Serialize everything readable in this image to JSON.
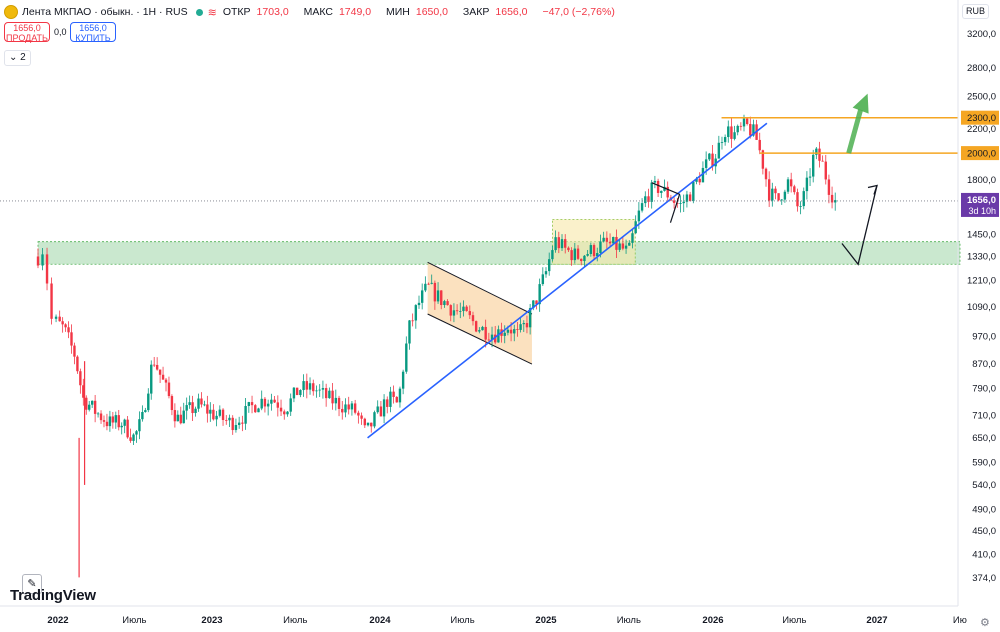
{
  "header": {
    "title": "Лента МКПАО · обыкн. · 1Н · RUS",
    "wave_icon": "≋",
    "ohlc": [
      {
        "label": "ОТКР",
        "value": "1703,0"
      },
      {
        "label": "МАКС",
        "value": "1749,0"
      },
      {
        "label": "МИН",
        "value": "1650,0"
      },
      {
        "label": "ЗАКР",
        "value": "1656,0"
      },
      {
        "label": "",
        "value": "−47,0 (−2,76%)"
      }
    ]
  },
  "trade": {
    "sell_price": "1656,0",
    "sell_label": "ПРОДАТЬ",
    "spread": "0,0",
    "buy_price": "1656,0",
    "buy_label": "КУПИТЬ"
  },
  "collapse_label": "⌄ 2",
  "currency": "RUB",
  "brand": "TradingView",
  "icons": {
    "pencil": "✎",
    "gear": "⚙"
  },
  "colors": {
    "up": "#089981",
    "down": "#f23645",
    "trendline": "#2962ff",
    "level": "#f5a623",
    "zone": "#9fd5a8",
    "channel": "#f7c98b"
  },
  "chart_data": {
    "type": "candlestick",
    "y_scale": "log",
    "ylim": [
      360,
      3600
    ],
    "xlim": [
      "2021-12-01",
      "2027-12-01"
    ],
    "y_ticks": [
      "3200,0",
      "2800,0",
      "2500,0",
      "2200,0",
      "1800,0",
      "1450,0",
      "1330,0",
      "1210,0",
      "1090,0",
      "970,0",
      "870,0",
      "790,0",
      "710,0",
      "650,0",
      "590,0",
      "540,0",
      "490,0",
      "450,0",
      "410,0",
      "374,0"
    ],
    "y_tick_values": [
      3200,
      2800,
      2500,
      2200,
      1800,
      1450,
      1330,
      1210,
      1090,
      970,
      870,
      790,
      710,
      650,
      590,
      540,
      490,
      450,
      410,
      374
    ],
    "x_ticks": [
      {
        "label": "2022",
        "date": "2022-01-01"
      },
      {
        "label": "Июль",
        "date": "2022-07-01"
      },
      {
        "label": "2023",
        "date": "2023-01-01"
      },
      {
        "label": "Июль",
        "date": "2023-07-01"
      },
      {
        "label": "2024",
        "date": "2024-01-01"
      },
      {
        "label": "Июль",
        "date": "2024-07-01"
      },
      {
        "label": "2025",
        "date": "2025-01-01"
      },
      {
        "label": "Июль",
        "date": "2025-07-01"
      },
      {
        "label": "2026",
        "date": "2026-01-01"
      },
      {
        "label": "Июль",
        "date": "2026-07-01"
      },
      {
        "label": "2027",
        "date": "2027-01-01"
      },
      {
        "label": "Ию",
        "date": "2027-07-01"
      }
    ],
    "series_path": [
      [
        "2021-12-01",
        1330
      ],
      [
        "2021-12-10",
        1380
      ],
      [
        "2021-12-20",
        1040
      ],
      [
        "2022-01-15",
        1000
      ],
      [
        "2022-02-10",
        900
      ],
      [
        "2022-03-01",
        760
      ],
      [
        "2022-04-01",
        720
      ],
      [
        "2022-05-01",
        690
      ],
      [
        "2022-06-01",
        690
      ],
      [
        "2022-07-01",
        650
      ],
      [
        "2022-07-20",
        700
      ],
      [
        "2022-08-15",
        890
      ],
      [
        "2022-09-10",
        800
      ],
      [
        "2022-10-10",
        700
      ],
      [
        "2022-11-01",
        720
      ],
      [
        "2022-12-01",
        740
      ],
      [
        "2023-01-10",
        710
      ],
      [
        "2023-02-10",
        690
      ],
      [
        "2023-03-10",
        710
      ],
      [
        "2023-04-10",
        750
      ],
      [
        "2023-05-10",
        760
      ],
      [
        "2023-06-10",
        730
      ],
      [
        "2023-07-10",
        790
      ],
      [
        "2023-08-10",
        790
      ],
      [
        "2023-09-10",
        760
      ],
      [
        "2023-10-10",
        740
      ],
      [
        "2023-11-10",
        720
      ],
      [
        "2023-12-01",
        660
      ],
      [
        "2023-12-20",
        700
      ],
      [
        "2024-01-20",
        760
      ],
      [
        "2024-02-10",
        740
      ],
      [
        "2024-03-05",
        1000
      ],
      [
        "2024-03-25",
        1100
      ],
      [
        "2024-04-15",
        1180
      ],
      [
        "2024-05-10",
        1130
      ],
      [
        "2024-06-10",
        1080
      ],
      [
        "2024-07-10",
        1050
      ],
      [
        "2024-08-10",
        1000
      ],
      [
        "2024-09-10",
        980
      ],
      [
        "2024-10-10",
        1010
      ],
      [
        "2024-11-01",
        970
      ],
      [
        "2024-11-20",
        1030
      ],
      [
        "2024-12-10",
        1120
      ],
      [
        "2025-01-01",
        1250
      ],
      [
        "2025-01-20",
        1420
      ],
      [
        "2025-02-10",
        1370
      ],
      [
        "2025-03-10",
        1330
      ],
      [
        "2025-04-10",
        1360
      ],
      [
        "2025-05-10",
        1400
      ],
      [
        "2025-06-10",
        1380
      ],
      [
        "2025-07-01",
        1350
      ],
      [
        "2025-07-20",
        1550
      ],
      [
        "2025-08-10",
        1700
      ],
      [
        "2025-09-01",
        1750
      ],
      [
        "2025-09-25",
        1700
      ],
      [
        "2025-10-20",
        1620
      ],
      [
        "2025-11-15",
        1720
      ],
      [
        "2025-12-15",
        1900
      ],
      [
        "2026-01-10",
        2000
      ],
      [
        "2026-01-25",
        2200
      ],
      [
        "2026-02-20",
        2150
      ],
      [
        "2026-03-15",
        2230
      ],
      [
        "2026-04-05",
        2150
      ],
      [
        "2026-04-20",
        1950
      ],
      [
        "2026-05-05",
        1720
      ],
      [
        "2026-05-25",
        1650
      ],
      [
        "2026-06-15",
        1800
      ],
      [
        "2026-07-10",
        1600
      ],
      [
        "2026-07-25",
        1700
      ],
      [
        "2026-08-15",
        2000
      ],
      [
        "2026-09-01",
        1920
      ],
      [
        "2026-09-15",
        1760
      ],
      [
        "2026-09-30",
        1656
      ]
    ],
    "spikes": [
      {
        "date": "2022-02-20",
        "low": 375,
        "high": 650
      },
      {
        "date": "2022-03-05",
        "low": 540,
        "high": 880
      }
    ],
    "last_price": {
      "value": 1656,
      "label": "1656,0",
      "countdown": "3d 10h"
    },
    "levels": [
      {
        "value": 2300,
        "label": "2300,0",
        "from": "2026-01-20"
      },
      {
        "value": 2000,
        "label": "2000,0",
        "from": "2026-04-15"
      }
    ],
    "support_zone": {
      "from_date": "2021-12-01",
      "low": 1290,
      "high": 1410
    },
    "trendline": {
      "from": [
        "2023-12-05",
        650
      ],
      "to": [
        "2026-05-01",
        2250
      ]
    },
    "channel": {
      "upper": [
        [
          "2024-04-15",
          1300
        ],
        [
          "2024-12-01",
          1060
        ]
      ],
      "lower": [
        [
          "2024-04-15",
          1060
        ],
        [
          "2024-12-01",
          870
        ]
      ]
    },
    "consolidation_box": {
      "from_date": "2025-01-15",
      "to_date": "2025-07-15",
      "low": 1290,
      "high": 1540
    },
    "triangle": {
      "points": [
        [
          "2025-08-20",
          1780
        ],
        [
          "2025-09-30",
          1830
        ],
        [
          "2025-10-20",
          1700
        ],
        [
          "2025-09-30",
          1520
        ]
      ]
    },
    "projection_black": [
      [
        "2026-10-15",
        1400
      ],
      [
        "2026-11-20",
        1290
      ],
      [
        "2027-01-01",
        1760
      ]
    ],
    "projection_green": [
      [
        "2026-10-30",
        2000
      ],
      [
        "2026-11-30",
        2450
      ]
    ]
  }
}
